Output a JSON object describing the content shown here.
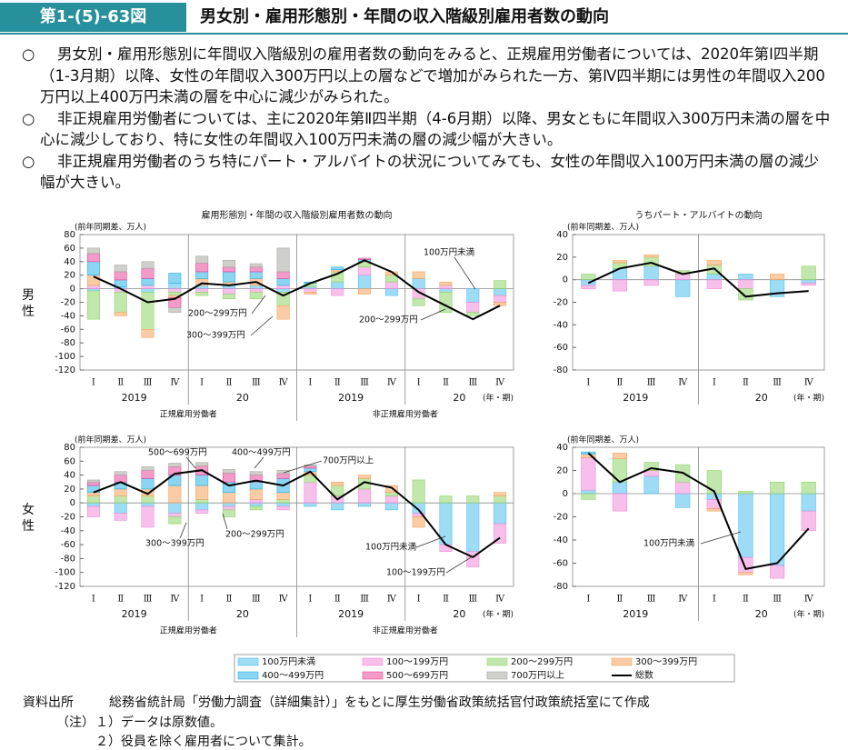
{
  "header": {
    "figure_no": "第1-(5)-63図",
    "title": "男女別・雇用形態別・年間の収入階級別雇用者数の動向"
  },
  "bullets": [
    {
      "mark": "○",
      "text": "男女別・雇用形態別に年間収入階級別の雇用者数の動向をみると、正規雇用労働者については、2020年第Ⅰ四半期（1-3月期）以降、女性の年間収入300万円以上の層などで増加がみられた一方、第Ⅳ四半期には男性の年間収入200万円以上400万円未満の層を中心に減少がみられた。"
    },
    {
      "mark": "○",
      "text": "非正規雇用労働者については、主に2020年第Ⅱ四半期（4-6月期）以降、男女ともに年間収入300万円未満の層を中心に減少しており、特に女性の年間収入100万円未満の層の減少幅が大きい。"
    },
    {
      "mark": "○",
      "text": "非正規雇用労働者のうち特にパート・アルバイトの状況についてみても、女性の年間収入100万円未満の層の減少幅が大きい。"
    }
  ],
  "chart_data": [
    {
      "type": "bar",
      "stacked": true,
      "title": "雇用形態別・年間の収入階級別雇用者数の動向",
      "row_label": "男性",
      "y_unit_label": "(前年同期差、万人)",
      "categories": [
        "Ⅰ",
        "Ⅱ",
        "Ⅲ",
        "Ⅳ",
        "Ⅰ",
        "Ⅱ",
        "Ⅲ",
        "Ⅳ",
        "Ⅰ",
        "Ⅱ",
        "Ⅲ",
        "Ⅳ",
        "Ⅰ",
        "Ⅱ",
        "Ⅲ",
        "Ⅳ"
      ],
      "year_labels": [
        "2019",
        "20",
        "2019",
        "20"
      ],
      "period_label": "(年・期)",
      "group_labels": [
        "正規雇用労働者",
        "非正規雇用労働者"
      ],
      "ylim": [
        -120,
        80
      ],
      "yticks": [
        -120,
        -100,
        -80,
        -60,
        -40,
        -20,
        0,
        20,
        40,
        60,
        80
      ],
      "series": [
        {
          "name": "100万円未満",
          "color": "#4fc0ee",
          "values": [
            -3,
            3,
            -5,
            8,
            5,
            5,
            5,
            -5,
            3,
            10,
            20,
            -10,
            15,
            -5,
            -20,
            -10
          ]
        },
        {
          "name": "100～199万円",
          "color": "#f08cd8",
          "values": [
            5,
            -5,
            5,
            -5,
            -5,
            -8,
            -5,
            5,
            -5,
            -10,
            12,
            10,
            -15,
            5,
            -15,
            -10
          ]
        },
        {
          "name": "200～299万円",
          "color": "#8fd46a",
          "values": [
            -42,
            -30,
            -55,
            -5,
            -5,
            -7,
            -10,
            -20,
            5,
            15,
            8,
            10,
            -10,
            -30,
            -5,
            12
          ]
        },
        {
          "name": "300～399万円",
          "color": "#f5a35c",
          "values": [
            15,
            -5,
            -12,
            -3,
            10,
            5,
            10,
            -20,
            -3,
            3,
            -8,
            5,
            10,
            5,
            0,
            -5
          ]
        },
        {
          "name": "400～499万円",
          "color": "#2bb3e6",
          "values": [
            20,
            10,
            10,
            15,
            10,
            15,
            10,
            10,
            2,
            4,
            3,
            0,
            0,
            0,
            0,
            0
          ]
        },
        {
          "name": "500～699万円",
          "color": "#e8489a",
          "values": [
            12,
            12,
            15,
            -15,
            13,
            7,
            7,
            10,
            0,
            0,
            2,
            0,
            0,
            0,
            0,
            0
          ]
        },
        {
          "name": "700万円以上",
          "color": "#a8a8a0",
          "values": [
            8,
            10,
            10,
            -7,
            10,
            10,
            5,
            35,
            0,
            0,
            0,
            0,
            0,
            0,
            0,
            0
          ]
        },
        {
          "name": "総数",
          "color": "#000000",
          "type": "line",
          "values": [
            18,
            0,
            -20,
            -15,
            8,
            5,
            10,
            -10,
            8,
            22,
            42,
            25,
            -5,
            -25,
            -45,
            -25
          ]
        }
      ],
      "annotations": [
        "200～299万円",
        "300～399万円",
        "100万円未満",
        "200～299万円"
      ]
    },
    {
      "type": "bar",
      "stacked": true,
      "title": "うちパート・アルバイトの動向",
      "y_unit_label": "(前年同期差、万人)",
      "categories": [
        "Ⅰ",
        "Ⅱ",
        "Ⅲ",
        "Ⅳ",
        "Ⅰ",
        "Ⅱ",
        "Ⅲ",
        "Ⅳ"
      ],
      "year_labels": [
        "2019",
        "20"
      ],
      "period_label": "(年・期)",
      "ylim": [
        -80,
        40
      ],
      "yticks": [
        -80,
        -60,
        -40,
        -20,
        0,
        20,
        40
      ],
      "series": [
        {
          "name": "100万円未満",
          "color": "#4fc0ee",
          "values": [
            -5,
            10,
            12,
            -15,
            5,
            5,
            -15,
            -3
          ]
        },
        {
          "name": "100～199万円",
          "color": "#f08cd8",
          "values": [
            -3,
            -10,
            -5,
            5,
            -8,
            -8,
            0,
            -2
          ]
        },
        {
          "name": "200～299万円",
          "color": "#8fd46a",
          "values": [
            5,
            5,
            8,
            3,
            8,
            -10,
            0,
            12
          ]
        },
        {
          "name": "300～399万円",
          "color": "#f5a35c",
          "values": [
            0,
            2,
            2,
            0,
            4,
            0,
            5,
            0
          ]
        },
        {
          "name": "400～499万円",
          "color": "#2bb3e6",
          "values": [
            0,
            0,
            0,
            0,
            0,
            0,
            0,
            0
          ]
        },
        {
          "name": "500～699万円",
          "color": "#e8489a",
          "values": [
            0,
            0,
            0,
            0,
            0,
            0,
            0,
            0
          ]
        },
        {
          "name": "700万円以上",
          "color": "#a8a8a0",
          "values": [
            0,
            0,
            0,
            0,
            0,
            0,
            0,
            0
          ]
        },
        {
          "name": "総数",
          "color": "#000000",
          "type": "line",
          "values": [
            -3,
            10,
            15,
            5,
            10,
            -15,
            -12,
            -10
          ]
        }
      ],
      "annotations": []
    },
    {
      "type": "bar",
      "stacked": true,
      "row_label": "女性",
      "y_unit_label": "(前年同期差、万人)",
      "categories": [
        "Ⅰ",
        "Ⅱ",
        "Ⅲ",
        "Ⅳ",
        "Ⅰ",
        "Ⅱ",
        "Ⅲ",
        "Ⅳ",
        "Ⅰ",
        "Ⅱ",
        "Ⅲ",
        "Ⅳ",
        "Ⅰ",
        "Ⅱ",
        "Ⅲ",
        "Ⅳ"
      ],
      "year_labels": [
        "2019",
        "20",
        "2019",
        "20"
      ],
      "period_label": "(年・期)",
      "group_labels": [
        "正規雇用労働者",
        "非正規雇用労働者"
      ],
      "ylim": [
        -120,
        80
      ],
      "yticks": [
        -120,
        -100,
        -80,
        -60,
        -40,
        -20,
        0,
        20,
        40,
        60,
        80
      ],
      "series": [
        {
          "name": "100万円未満",
          "color": "#4fc0ee",
          "values": [
            -5,
            -15,
            -5,
            -15,
            -10,
            -5,
            -5,
            -5,
            -5,
            -10,
            -5,
            -10,
            -15,
            -60,
            -70,
            -30
          ]
        },
        {
          "name": "100～199万円",
          "color": "#f08cd8",
          "values": [
            -15,
            -10,
            -30,
            -5,
            -5,
            -5,
            5,
            -5,
            30,
            10,
            20,
            10,
            -5,
            -10,
            -22,
            -28
          ]
        },
        {
          "name": "200～299万円",
          "color": "#8fd46a",
          "values": [
            10,
            10,
            10,
            -10,
            5,
            -10,
            -5,
            5,
            10,
            15,
            15,
            5,
            33,
            10,
            10,
            10
          ]
        },
        {
          "name": "300～399万円",
          "color": "#f5a35c",
          "values": [
            5,
            10,
            10,
            25,
            20,
            15,
            15,
            10,
            5,
            5,
            5,
            10,
            -15,
            0,
            0,
            5
          ]
        },
        {
          "name": "400～499万円",
          "color": "#2bb3e6",
          "values": [
            10,
            10,
            15,
            15,
            15,
            15,
            10,
            20,
            5,
            0,
            0,
            0,
            0,
            0,
            0,
            0
          ]
        },
        {
          "name": "500～699万円",
          "color": "#e8489a",
          "values": [
            5,
            10,
            12,
            12,
            13,
            13,
            10,
            7,
            3,
            0,
            0,
            0,
            0,
            0,
            0,
            0
          ]
        },
        {
          "name": "700万円以上",
          "color": "#a8a8a0",
          "values": [
            3,
            5,
            5,
            5,
            5,
            5,
            5,
            5,
            2,
            0,
            0,
            0,
            0,
            0,
            0,
            0
          ]
        },
        {
          "name": "総数",
          "color": "#000000",
          "type": "line",
          "values": [
            15,
            30,
            13,
            42,
            47,
            25,
            32,
            25,
            45,
            5,
            30,
            22,
            -10,
            -60,
            -78,
            -50
          ]
        }
      ],
      "annotations": [
        "500～699万円",
        "400～499万円",
        "700万円以上",
        "200～299万円",
        "300～399万円",
        "100万円未満",
        "100～199万円"
      ]
    },
    {
      "type": "bar",
      "stacked": true,
      "y_unit_label": "(前年同期差、万人)",
      "categories": [
        "Ⅰ",
        "Ⅱ",
        "Ⅲ",
        "Ⅳ",
        "Ⅰ",
        "Ⅱ",
        "Ⅲ",
        "Ⅳ"
      ],
      "year_labels": [
        "2019",
        "20"
      ],
      "period_label": "(年・期)",
      "ylim": [
        -80,
        40
      ],
      "yticks": [
        -80,
        -60,
        -40,
        -20,
        0,
        20,
        40
      ],
      "series": [
        {
          "name": "100万円未満",
          "color": "#4fc0ee",
          "values": [
            3,
            10,
            15,
            -12,
            -5,
            -55,
            -62,
            -15
          ]
        },
        {
          "name": "100～199万円",
          "color": "#f08cd8",
          "values": [
            28,
            -15,
            5,
            10,
            -8,
            -13,
            -11,
            -17
          ]
        },
        {
          "name": "200～299万円",
          "color": "#8fd46a",
          "values": [
            -5,
            20,
            7,
            15,
            20,
            2,
            10,
            10
          ]
        },
        {
          "name": "300～399万円",
          "color": "#f5a35c",
          "values": [
            3,
            5,
            0,
            0,
            -2,
            -2,
            0,
            0
          ]
        },
        {
          "name": "400～499万円",
          "color": "#2bb3e6",
          "values": [
            2,
            0,
            0,
            0,
            0,
            0,
            0,
            0
          ]
        },
        {
          "name": "500～699万円",
          "color": "#e8489a",
          "values": [
            0,
            0,
            0,
            0,
            0,
            0,
            0,
            0
          ]
        },
        {
          "name": "700万円以上",
          "color": "#a8a8a0",
          "values": [
            0,
            0,
            0,
            0,
            0,
            0,
            0,
            0
          ]
        },
        {
          "name": "総数",
          "color": "#000000",
          "type": "line",
          "values": [
            35,
            10,
            22,
            18,
            2,
            -65,
            -60,
            -30
          ]
        }
      ],
      "annotations": [
        "100万円未満"
      ]
    }
  ],
  "footer": {
    "source_label": "資料出所",
    "source": "総務省統計局「労働力調査（詳細集計）」をもとに厚生労働省政策統括官付政策統括室にて作成",
    "note_label": "（注）",
    "notes": [
      "１）データは原数値。",
      "２）役員を除く雇用者について集計。"
    ]
  }
}
